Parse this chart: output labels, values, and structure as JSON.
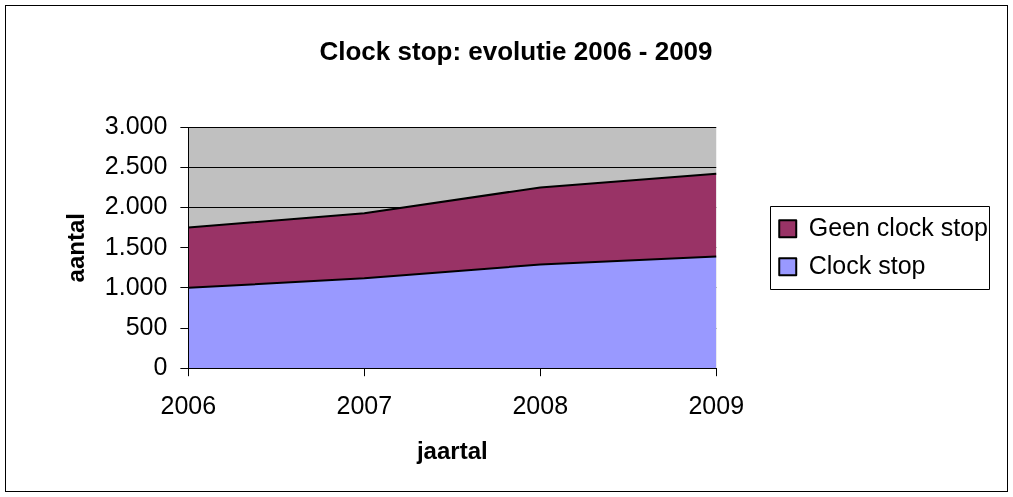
{
  "chart_data": {
    "type": "area",
    "title": "Clock stop: evolutie 2006 - 2009",
    "xlabel": "jaartal",
    "ylabel": "aantal",
    "categories": [
      "2006",
      "2007",
      "2008",
      "2009"
    ],
    "stacked": true,
    "series": [
      {
        "name": "Clock stop",
        "color": "#9999ff",
        "values": [
          1000,
          1120,
          1290,
          1390
        ]
      },
      {
        "name": "Geen clock stop",
        "color": "#993366",
        "values": [
          750,
          810,
          960,
          1030
        ]
      }
    ],
    "ylim": [
      0,
      3000
    ],
    "yticks": [
      0,
      500,
      {
        "value": 1000,
        "label": "1.000"
      },
      {
        "value": 1500,
        "label": "1.500"
      },
      {
        "value": 2000,
        "label": "2.000"
      },
      {
        "value": 2500,
        "label": "2.500"
      },
      {
        "value": 3000,
        "label": "3.000"
      }
    ],
    "grid": "y",
    "legend": "right"
  }
}
